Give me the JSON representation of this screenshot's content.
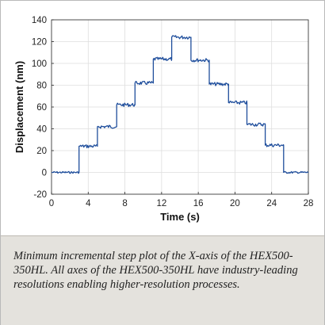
{
  "chart_data": {
    "type": "line",
    "title": "",
    "xlabel": "Time (s)",
    "ylabel": "Displacement (nm)",
    "xlim": [
      0,
      28
    ],
    "ylim": [
      -20,
      140
    ],
    "xticks": [
      "0",
      "4",
      "8",
      "12",
      "16",
      "20",
      "24",
      "28"
    ],
    "yticks": [
      "-20",
      "0",
      "20",
      "40",
      "60",
      "80",
      "100",
      "120",
      "140"
    ],
    "grid": true,
    "legend": "none",
    "series": [
      {
        "color": "#1f4e9c",
        "x": [
          0,
          3.0,
          3.0,
          5.0,
          5.0,
          7.1,
          7.1,
          9.1,
          9.1,
          11.1,
          11.1,
          13.1,
          13.1,
          15.2,
          15.2,
          17.2,
          17.2,
          19.3,
          19.3,
          21.3,
          21.3,
          23.3,
          23.3,
          25.3,
          25.3,
          28
        ],
        "y": [
          0,
          0,
          24,
          24,
          42,
          42,
          62,
          62,
          82,
          82,
          104,
          104,
          124,
          124,
          103,
          103,
          81,
          81,
          64,
          64,
          44,
          44,
          25,
          25,
          0,
          0
        ]
      }
    ]
  },
  "caption": "Minimum incremental step plot of the X-axis of the HEX500-350HL. All axes of the HEX500-350HL have industry-leading resolutions enabling higher-resolution processes."
}
